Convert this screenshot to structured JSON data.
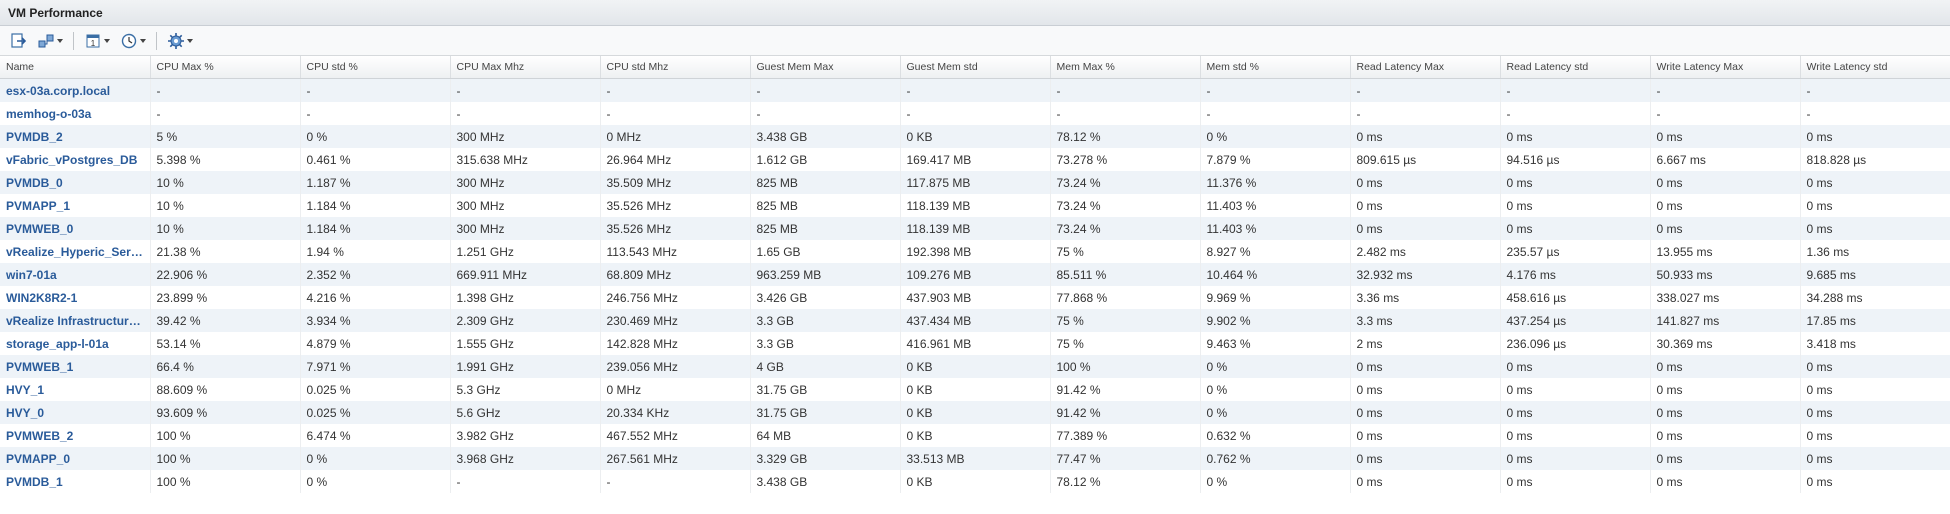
{
  "panel": {
    "title": "VM Performance"
  },
  "toolbar": {
    "buttons": [
      {
        "icon": "export-icon"
      },
      {
        "icon": "hierarchy-icon",
        "dropdown": true
      },
      {
        "icon": "calendar-icon",
        "dropdown": true
      },
      {
        "icon": "clock-icon",
        "dropdown": true
      },
      {
        "icon": "gear-icon",
        "dropdown": true
      }
    ]
  },
  "table": {
    "columns": [
      "Name",
      "CPU Max %",
      "CPU std %",
      "CPU Max Mhz",
      "CPU std Mhz",
      "Guest Mem Max",
      "Guest Mem std",
      "Mem Max %",
      "Mem std %",
      "Read Latency Max",
      "Read Latency std",
      "Write Latency Max",
      "Write Latency std"
    ],
    "rows": [
      [
        "esx-03a.corp.local",
        "-",
        "-",
        "-",
        "-",
        "-",
        "-",
        "-",
        "-",
        "-",
        "-",
        "-",
        "-"
      ],
      [
        "memhog-o-03a",
        "-",
        "-",
        "-",
        "-",
        "-",
        "-",
        "-",
        "-",
        "-",
        "-",
        "-",
        "-"
      ],
      [
        "PVMDB_2",
        "5 %",
        "0 %",
        "300 MHz",
        "0 MHz",
        "3.438 GB",
        "0 KB",
        "78.12 %",
        "0 %",
        "0 ms",
        "0 ms",
        "0 ms",
        "0 ms"
      ],
      [
        "vFabric_vPostgres_DB",
        "5.398 %",
        "0.461 %",
        "315.638 MHz",
        "26.964 MHz",
        "1.612 GB",
        "169.417 MB",
        "73.278 %",
        "7.879 %",
        "809.615 µs",
        "94.516 µs",
        "6.667 ms",
        "818.828 µs"
      ],
      [
        "PVMDB_0",
        "10 %",
        "1.187 %",
        "300 MHz",
        "35.509 MHz",
        "825 MB",
        "117.875 MB",
        "73.24 %",
        "11.376 %",
        "0 ms",
        "0 ms",
        "0 ms",
        "0 ms"
      ],
      [
        "PVMAPP_1",
        "10 %",
        "1.184 %",
        "300 MHz",
        "35.526 MHz",
        "825 MB",
        "118.139 MB",
        "73.24 %",
        "11.403 %",
        "0 ms",
        "0 ms",
        "0 ms",
        "0 ms"
      ],
      [
        "PVMWEB_0",
        "10 %",
        "1.184 %",
        "300 MHz",
        "35.526 MHz",
        "825 MB",
        "118.139 MB",
        "73.24 %",
        "11.403 %",
        "0 ms",
        "0 ms",
        "0 ms",
        "0 ms"
      ],
      [
        "vRealize_Hyperic_Server",
        "21.38 %",
        "1.94 %",
        "1.251 GHz",
        "113.543 MHz",
        "1.65 GB",
        "192.398 MB",
        "75 %",
        "8.927 %",
        "2.482 ms",
        "235.57 µs",
        "13.955 ms",
        "1.36 ms"
      ],
      [
        "win7-01a",
        "22.906 %",
        "2.352 %",
        "669.911 MHz",
        "68.809 MHz",
        "963.259 MB",
        "109.276 MB",
        "85.511 %",
        "10.464 %",
        "32.932 ms",
        "4.176 ms",
        "50.933 ms",
        "9.685 ms"
      ],
      [
        "WIN2K8R2-1",
        "23.899 %",
        "4.216 %",
        "1.398 GHz",
        "246.756 MHz",
        "3.426 GB",
        "437.903 MB",
        "77.868 %",
        "9.969 %",
        "3.36 ms",
        "458.616 µs",
        "338.027 ms",
        "34.288 ms"
      ],
      [
        "vRealize Infrastructure Navigator",
        "39.42 %",
        "3.934 %",
        "2.309 GHz",
        "230.469 MHz",
        "3.3 GB",
        "437.434 MB",
        "75 %",
        "9.902 %",
        "3.3 ms",
        "437.254 µs",
        "141.827 ms",
        "17.85 ms"
      ],
      [
        "storage_app-l-01a",
        "53.14 %",
        "4.879 %",
        "1.555 GHz",
        "142.828 MHz",
        "3.3 GB",
        "416.961 MB",
        "75 %",
        "9.463 %",
        "2 ms",
        "236.096 µs",
        "30.369 ms",
        "3.418 ms"
      ],
      [
        "PVMWEB_1",
        "66.4 %",
        "7.971 %",
        "1.991 GHz",
        "239.056 MHz",
        "4 GB",
        "0 KB",
        "100 %",
        "0 %",
        "0 ms",
        "0 ms",
        "0 ms",
        "0 ms"
      ],
      [
        "HVY_1",
        "88.609 %",
        "0.025 %",
        "5.3 GHz",
        "0 MHz",
        "31.75 GB",
        "0 KB",
        "91.42 %",
        "0 %",
        "0 ms",
        "0 ms",
        "0 ms",
        "0 ms"
      ],
      [
        "HVY_0",
        "93.609 %",
        "0.025 %",
        "5.6 GHz",
        "20.334 KHz",
        "31.75 GB",
        "0 KB",
        "91.42 %",
        "0 %",
        "0 ms",
        "0 ms",
        "0 ms",
        "0 ms"
      ],
      [
        "PVMWEB_2",
        "100 %",
        "6.474 %",
        "3.982 GHz",
        "467.552 MHz",
        "64 MB",
        "0 KB",
        "77.389 %",
        "0.632 %",
        "0 ms",
        "0 ms",
        "0 ms",
        "0 ms"
      ],
      [
        "PVMAPP_0",
        "100 %",
        "0 %",
        "3.968 GHz",
        "267.561 MHz",
        "3.329 GB",
        "33.513 MB",
        "77.47 %",
        "0.762 %",
        "0 ms",
        "0 ms",
        "0 ms",
        "0 ms"
      ],
      [
        "PVMDB_1",
        "100 %",
        "0 %",
        "-",
        "-",
        "3.438 GB",
        "0 KB",
        "78.12 %",
        "0 %",
        "0 ms",
        "0 ms",
        "0 ms",
        "0 ms"
      ]
    ]
  }
}
